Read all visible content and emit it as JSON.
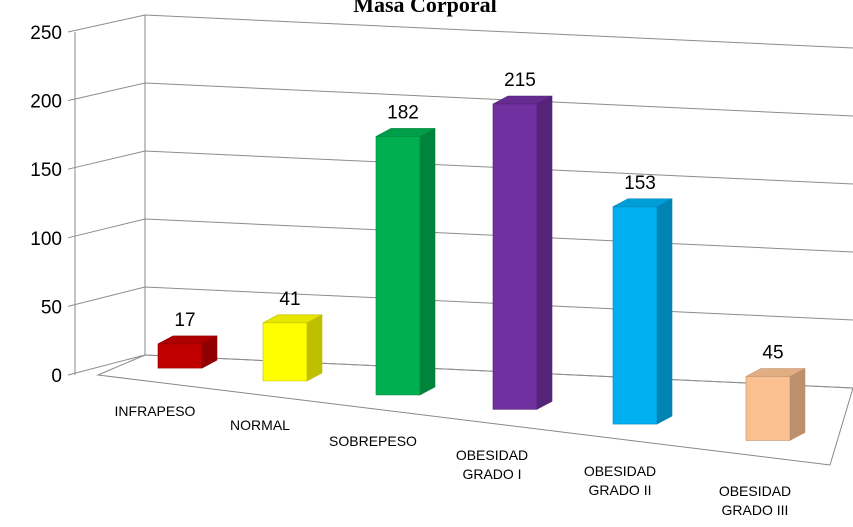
{
  "chart_data": {
    "type": "bar3d",
    "title": "Masa Corporal",
    "categories": [
      "INFRAPESO",
      "NORMAL",
      "SOBREPESO",
      "OBESIDAD GRADO I",
      "OBESIDAD GRADO II",
      "OBESIDAD GRADO III"
    ],
    "values": [
      17,
      41,
      182,
      215,
      153,
      45
    ],
    "colors": [
      "#c00000",
      "#ffff00",
      "#00b050",
      "#7030a0",
      "#00b0f0",
      "#fac090"
    ],
    "ylim": [
      0,
      250
    ],
    "yticks": [
      0,
      50,
      100,
      150,
      200,
      250
    ],
    "grid": true
  }
}
